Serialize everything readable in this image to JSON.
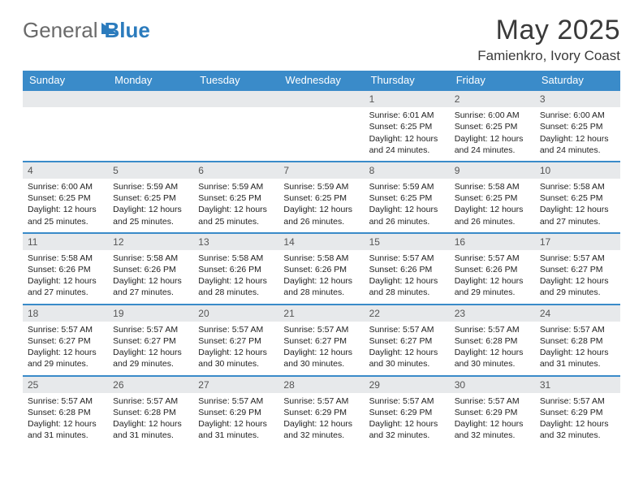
{
  "brand": {
    "word1": "General",
    "word2": "Blue"
  },
  "title": "May 2025",
  "location": "Famienkro, Ivory Coast",
  "colors": {
    "accent": "#3a8bc9",
    "daynum_bg": "#e7e9eb",
    "text": "#333333"
  },
  "day_headers": [
    "Sunday",
    "Monday",
    "Tuesday",
    "Wednesday",
    "Thursday",
    "Friday",
    "Saturday"
  ],
  "weeks": [
    [
      null,
      null,
      null,
      null,
      {
        "n": "1",
        "sr": "6:01 AM",
        "ss": "6:25 PM",
        "dl": "12 hours and 24 minutes."
      },
      {
        "n": "2",
        "sr": "6:00 AM",
        "ss": "6:25 PM",
        "dl": "12 hours and 24 minutes."
      },
      {
        "n": "3",
        "sr": "6:00 AM",
        "ss": "6:25 PM",
        "dl": "12 hours and 24 minutes."
      }
    ],
    [
      {
        "n": "4",
        "sr": "6:00 AM",
        "ss": "6:25 PM",
        "dl": "12 hours and 25 minutes."
      },
      {
        "n": "5",
        "sr": "5:59 AM",
        "ss": "6:25 PM",
        "dl": "12 hours and 25 minutes."
      },
      {
        "n": "6",
        "sr": "5:59 AM",
        "ss": "6:25 PM",
        "dl": "12 hours and 25 minutes."
      },
      {
        "n": "7",
        "sr": "5:59 AM",
        "ss": "6:25 PM",
        "dl": "12 hours and 26 minutes."
      },
      {
        "n": "8",
        "sr": "5:59 AM",
        "ss": "6:25 PM",
        "dl": "12 hours and 26 minutes."
      },
      {
        "n": "9",
        "sr": "5:58 AM",
        "ss": "6:25 PM",
        "dl": "12 hours and 26 minutes."
      },
      {
        "n": "10",
        "sr": "5:58 AM",
        "ss": "6:25 PM",
        "dl": "12 hours and 27 minutes."
      }
    ],
    [
      {
        "n": "11",
        "sr": "5:58 AM",
        "ss": "6:26 PM",
        "dl": "12 hours and 27 minutes."
      },
      {
        "n": "12",
        "sr": "5:58 AM",
        "ss": "6:26 PM",
        "dl": "12 hours and 27 minutes."
      },
      {
        "n": "13",
        "sr": "5:58 AM",
        "ss": "6:26 PM",
        "dl": "12 hours and 28 minutes."
      },
      {
        "n": "14",
        "sr": "5:58 AM",
        "ss": "6:26 PM",
        "dl": "12 hours and 28 minutes."
      },
      {
        "n": "15",
        "sr": "5:57 AM",
        "ss": "6:26 PM",
        "dl": "12 hours and 28 minutes."
      },
      {
        "n": "16",
        "sr": "5:57 AM",
        "ss": "6:26 PM",
        "dl": "12 hours and 29 minutes."
      },
      {
        "n": "17",
        "sr": "5:57 AM",
        "ss": "6:27 PM",
        "dl": "12 hours and 29 minutes."
      }
    ],
    [
      {
        "n": "18",
        "sr": "5:57 AM",
        "ss": "6:27 PM",
        "dl": "12 hours and 29 minutes."
      },
      {
        "n": "19",
        "sr": "5:57 AM",
        "ss": "6:27 PM",
        "dl": "12 hours and 29 minutes."
      },
      {
        "n": "20",
        "sr": "5:57 AM",
        "ss": "6:27 PM",
        "dl": "12 hours and 30 minutes."
      },
      {
        "n": "21",
        "sr": "5:57 AM",
        "ss": "6:27 PM",
        "dl": "12 hours and 30 minutes."
      },
      {
        "n": "22",
        "sr": "5:57 AM",
        "ss": "6:27 PM",
        "dl": "12 hours and 30 minutes."
      },
      {
        "n": "23",
        "sr": "5:57 AM",
        "ss": "6:28 PM",
        "dl": "12 hours and 30 minutes."
      },
      {
        "n": "24",
        "sr": "5:57 AM",
        "ss": "6:28 PM",
        "dl": "12 hours and 31 minutes."
      }
    ],
    [
      {
        "n": "25",
        "sr": "5:57 AM",
        "ss": "6:28 PM",
        "dl": "12 hours and 31 minutes."
      },
      {
        "n": "26",
        "sr": "5:57 AM",
        "ss": "6:28 PM",
        "dl": "12 hours and 31 minutes."
      },
      {
        "n": "27",
        "sr": "5:57 AM",
        "ss": "6:29 PM",
        "dl": "12 hours and 31 minutes."
      },
      {
        "n": "28",
        "sr": "5:57 AM",
        "ss": "6:29 PM",
        "dl": "12 hours and 32 minutes."
      },
      {
        "n": "29",
        "sr": "5:57 AM",
        "ss": "6:29 PM",
        "dl": "12 hours and 32 minutes."
      },
      {
        "n": "30",
        "sr": "5:57 AM",
        "ss": "6:29 PM",
        "dl": "12 hours and 32 minutes."
      },
      {
        "n": "31",
        "sr": "5:57 AM",
        "ss": "6:29 PM",
        "dl": "12 hours and 32 minutes."
      }
    ]
  ],
  "labels": {
    "sunrise": "Sunrise:",
    "sunset": "Sunset:",
    "daylight": "Daylight:"
  }
}
